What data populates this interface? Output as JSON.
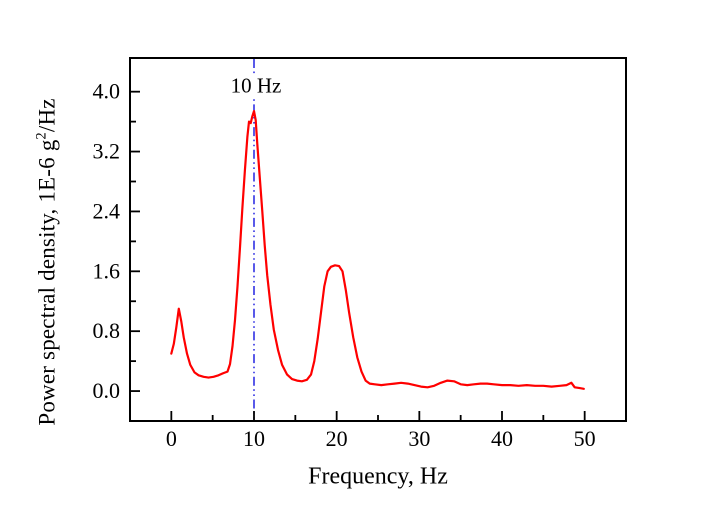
{
  "figure": {
    "background": "#ffffff"
  },
  "chart_data": {
    "type": "line",
    "title": "",
    "xlabel": "Frequency, Hz",
    "ylabel": "Power spectral density, 1E-6 g²/Hz",
    "ylabel_parts": {
      "pre": "Power spectral density, 1E-6 g",
      "sup": "2",
      "post": "/Hz"
    },
    "xlim": [
      -5,
      55
    ],
    "ylim": [
      -0.4,
      4.45
    ],
    "xticks": {
      "values": [
        0,
        10,
        20,
        30,
        40,
        50
      ],
      "labels": [
        "0",
        "10",
        "20",
        "30",
        "40",
        "50"
      ]
    },
    "yticks": {
      "values": [
        0.0,
        0.8,
        1.6,
        2.4,
        3.2,
        4.0
      ],
      "labels": [
        "0.0",
        "0.8",
        "1.6",
        "2.4",
        "3.2",
        "4.0"
      ]
    },
    "x_minor_ticks": [
      5,
      15,
      25,
      35,
      45
    ],
    "y_minor_ticks": [
      0.4,
      1.2,
      2.0,
      2.8,
      3.6
    ],
    "grid": false,
    "legend_position": "none",
    "series": [
      {
        "name": "power-spectral-density",
        "color": "#ff0000",
        "points": [
          [
            0.0,
            0.5
          ],
          [
            0.3,
            0.63
          ],
          [
            0.6,
            0.85
          ],
          [
            0.9,
            1.1
          ],
          [
            1.2,
            0.93
          ],
          [
            1.5,
            0.72
          ],
          [
            1.9,
            0.5
          ],
          [
            2.3,
            0.35
          ],
          [
            2.8,
            0.25
          ],
          [
            3.3,
            0.21
          ],
          [
            3.9,
            0.19
          ],
          [
            4.5,
            0.18
          ],
          [
            5.1,
            0.19
          ],
          [
            5.7,
            0.21
          ],
          [
            6.3,
            0.24
          ],
          [
            6.8,
            0.26
          ],
          [
            7.1,
            0.36
          ],
          [
            7.4,
            0.6
          ],
          [
            7.7,
            0.95
          ],
          [
            8.0,
            1.4
          ],
          [
            8.3,
            1.9
          ],
          [
            8.6,
            2.45
          ],
          [
            8.9,
            2.95
          ],
          [
            9.2,
            3.4
          ],
          [
            9.4,
            3.6
          ],
          [
            9.6,
            3.58
          ],
          [
            9.8,
            3.67
          ],
          [
            10.0,
            3.74
          ],
          [
            10.2,
            3.62
          ],
          [
            10.4,
            3.3
          ],
          [
            10.7,
            2.85
          ],
          [
            11.0,
            2.4
          ],
          [
            11.3,
            1.95
          ],
          [
            11.6,
            1.55
          ],
          [
            12.0,
            1.15
          ],
          [
            12.4,
            0.82
          ],
          [
            12.9,
            0.55
          ],
          [
            13.4,
            0.35
          ],
          [
            14.0,
            0.22
          ],
          [
            14.6,
            0.16
          ],
          [
            15.2,
            0.14
          ],
          [
            15.8,
            0.13
          ],
          [
            16.4,
            0.15
          ],
          [
            16.9,
            0.22
          ],
          [
            17.3,
            0.4
          ],
          [
            17.7,
            0.7
          ],
          [
            18.1,
            1.05
          ],
          [
            18.5,
            1.4
          ],
          [
            18.9,
            1.6
          ],
          [
            19.3,
            1.66
          ],
          [
            19.8,
            1.68
          ],
          [
            20.3,
            1.67
          ],
          [
            20.7,
            1.6
          ],
          [
            21.1,
            1.35
          ],
          [
            21.5,
            1.05
          ],
          [
            22.0,
            0.72
          ],
          [
            22.5,
            0.45
          ],
          [
            23.0,
            0.26
          ],
          [
            23.5,
            0.14
          ],
          [
            24.0,
            0.1
          ],
          [
            24.6,
            0.09
          ],
          [
            25.4,
            0.08
          ],
          [
            26.2,
            0.09
          ],
          [
            27.0,
            0.1
          ],
          [
            27.8,
            0.11
          ],
          [
            28.6,
            0.1
          ],
          [
            29.4,
            0.08
          ],
          [
            30.2,
            0.06
          ],
          [
            31.0,
            0.05
          ],
          [
            31.8,
            0.07
          ],
          [
            32.6,
            0.11
          ],
          [
            33.4,
            0.14
          ],
          [
            34.2,
            0.13
          ],
          [
            35.0,
            0.09
          ],
          [
            35.8,
            0.08
          ],
          [
            36.6,
            0.09
          ],
          [
            37.4,
            0.1
          ],
          [
            38.2,
            0.1
          ],
          [
            39.0,
            0.09
          ],
          [
            40.0,
            0.08
          ],
          [
            41.0,
            0.08
          ],
          [
            42.0,
            0.07
          ],
          [
            43.0,
            0.08
          ],
          [
            44.0,
            0.07
          ],
          [
            45.0,
            0.07
          ],
          [
            46.0,
            0.06
          ],
          [
            47.0,
            0.07
          ],
          [
            47.8,
            0.08
          ],
          [
            48.4,
            0.11
          ],
          [
            48.8,
            0.05
          ],
          [
            49.4,
            0.04
          ],
          [
            49.9,
            0.03
          ]
        ]
      }
    ],
    "reference_line": {
      "x": 10,
      "color": "#0000dd",
      "style": "dash-dot-dot"
    },
    "annotation": {
      "text": "10 Hz",
      "x_hz": 10
    }
  },
  "colors": {
    "axis": "#000000",
    "text": "#000000",
    "curve": "#ff0000",
    "reference": "#0000dd",
    "background": "#ffffff"
  }
}
